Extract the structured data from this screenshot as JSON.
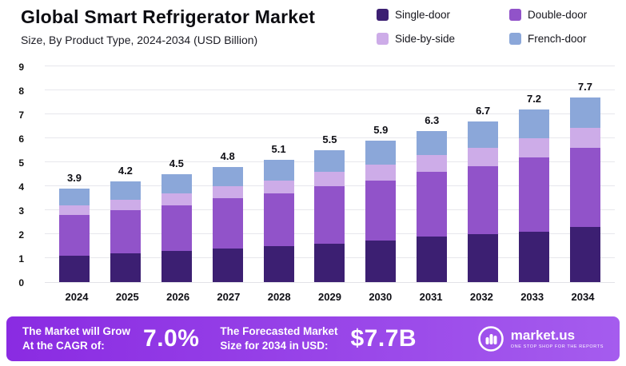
{
  "header": {
    "title": "Global Smart Refrigerator Market",
    "subtitle": "Size, By Product Type, 2024-2034 (USD Billion)"
  },
  "chart_data": {
    "type": "bar",
    "stacked": true,
    "title": "Global Smart Refrigerator Market",
    "subtitle": "Size, By Product Type, 2024-2034 (USD Billion)",
    "categories": [
      "2024",
      "2025",
      "2026",
      "2027",
      "2028",
      "2029",
      "2030",
      "2031",
      "2032",
      "2033",
      "2034"
    ],
    "series": [
      {
        "name": "Single-door",
        "color": "#3c1f72",
        "values": [
          1.1,
          1.2,
          1.3,
          1.4,
          1.5,
          1.6,
          1.75,
          1.9,
          2.0,
          2.1,
          2.3
        ]
      },
      {
        "name": "Double-door",
        "color": "#9153c9",
        "values": [
          1.7,
          1.8,
          1.9,
          2.1,
          2.2,
          2.4,
          2.5,
          2.7,
          2.85,
          3.1,
          3.3
        ]
      },
      {
        "name": "Side-by-side",
        "color": "#cdace8",
        "values": [
          0.4,
          0.45,
          0.5,
          0.5,
          0.55,
          0.6,
          0.65,
          0.7,
          0.75,
          0.8,
          0.85
        ]
      },
      {
        "name": "French-door",
        "color": "#8ba7d9",
        "values": [
          0.7,
          0.75,
          0.8,
          0.8,
          0.85,
          0.9,
          1.0,
          1.0,
          1.1,
          1.2,
          1.25
        ]
      }
    ],
    "totals": [
      3.9,
      4.2,
      4.5,
      4.8,
      5.1,
      5.5,
      5.9,
      6.3,
      6.7,
      7.2,
      7.7
    ],
    "ylim": [
      0,
      9
    ],
    "yticks": [
      0,
      1,
      2,
      3,
      4,
      5,
      6,
      7,
      8,
      9
    ],
    "grid": true,
    "legend_position": "top-right"
  },
  "footer": {
    "gradient": [
      "#8a2be2",
      "#a55cee"
    ],
    "cagr_label_line1": "The Market will Grow",
    "cagr_label_line2": "At the CAGR of:",
    "cagr_value": "7.0%",
    "forecast_label_line1": "The Forecasted Market",
    "forecast_label_line2": "Size for 2034 in USD:",
    "forecast_value": "$7.7B",
    "logo_text": "market.us",
    "logo_tagline": "ONE STOP SHOP FOR THE REPORTS"
  }
}
